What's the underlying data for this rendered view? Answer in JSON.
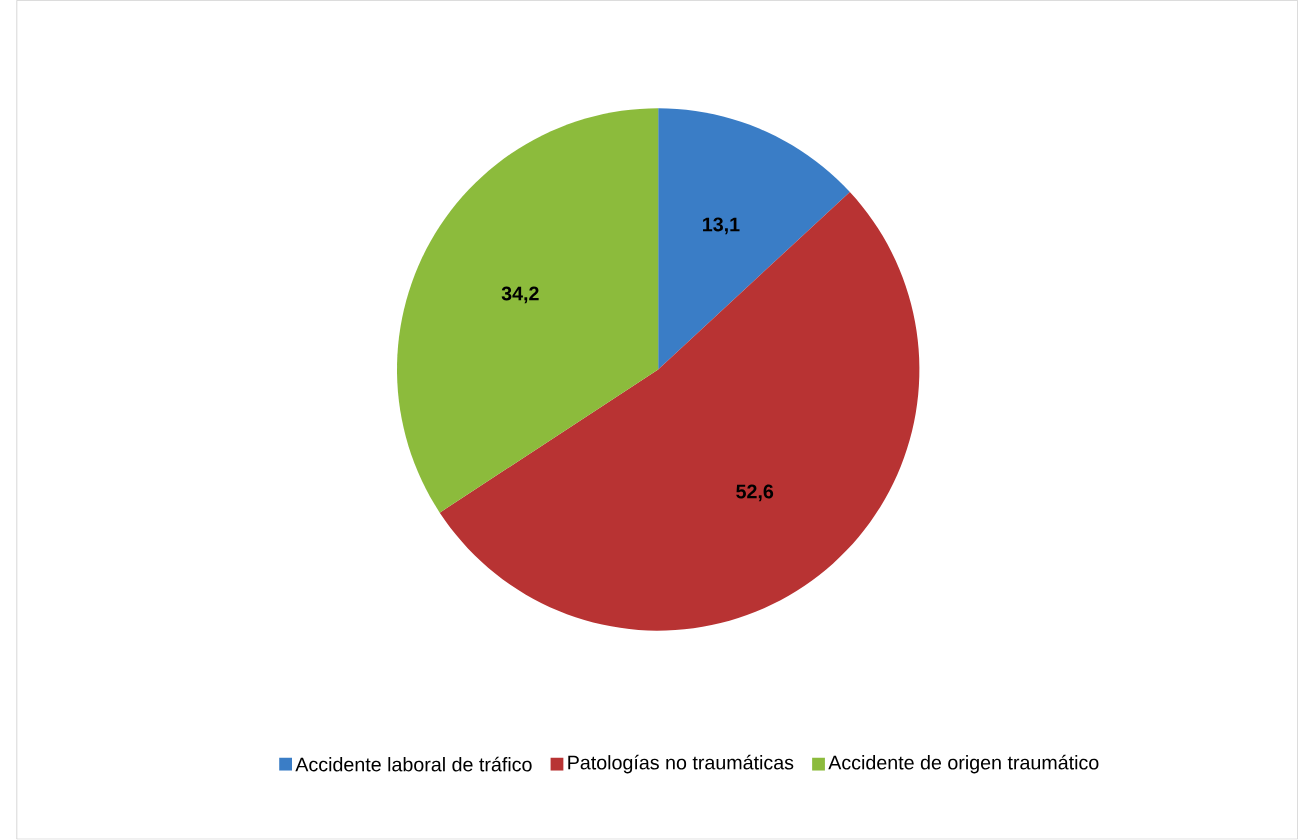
{
  "chart_data": {
    "type": "pie",
    "categories": [
      "Accidente laboral de tráfico",
      "Patologías no traumáticas",
      "Accidente de origen traumático"
    ],
    "values": [
      13.1,
      52.6,
      34.2
    ],
    "value_labels": [
      "13,1",
      "52,6",
      "34,2"
    ],
    "colors": [
      "#3a7dc6",
      "#b83333",
      "#8cbb3c"
    ],
    "legend": "bottom"
  }
}
